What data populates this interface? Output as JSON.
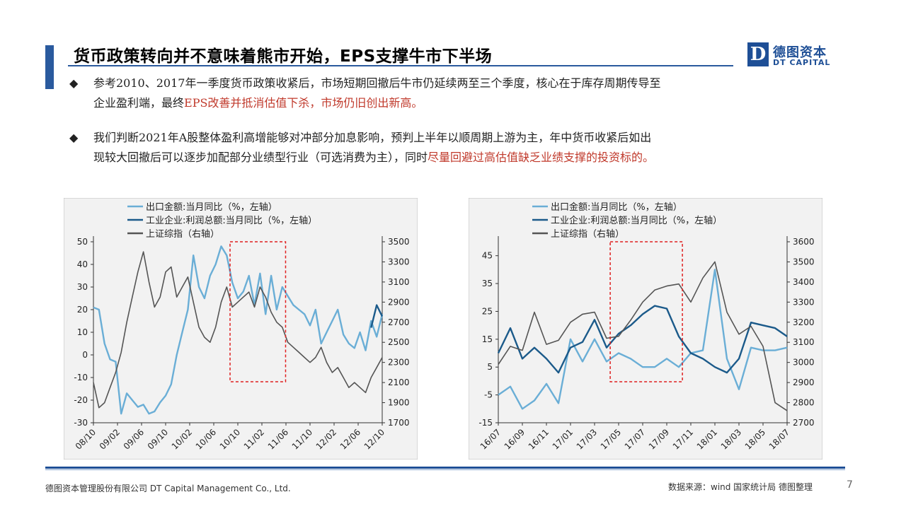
{
  "title": "货币政策转向并不意味着熊市开始，EPS支撑牛市下半场",
  "logo": {
    "mark": "D",
    "cn": "德图资本",
    "en": "DT CAPITAL"
  },
  "bullets": [
    {
      "line1": "参考2010、2017年一季度货币政策收紧后，市场短期回撤后牛市仍延续两至三个季度，核心在于库存周期传导至",
      "line2_normal": "企业盈利端，最终",
      "line2_red": "EPS改善并抵消估值下杀，市场仍旧创出新高。"
    },
    {
      "line1": "我们判断2021年A股整体盈利高增能够对冲部分加息影响，预判上半年以顺周期上游为主，年中货币收紧后如出",
      "line2_normal": "现较大回撤后可以逐步加配部分业绩型行业（可选消费为主），同时",
      "line2_red": "尽量回避过高估值缺乏业绩支撑的投资标的。"
    }
  ],
  "colors": {
    "light": "#6aaed6",
    "dark": "#1b5a8a",
    "gray": "#555555",
    "accent": "#1e4f96",
    "red": "#e02020"
  },
  "chart_data": [
    {
      "type": "line",
      "legend": [
        "出口金额:当月同比（%，左轴）",
        "工业企业:利润总额:当月同比（%，左轴）",
        "上证综指（右轴）"
      ],
      "x_ticks": [
        "08/10",
        "09/02",
        "09/06",
        "09/10",
        "10/02",
        "10/06",
        "10/10",
        "11/02",
        "11/06",
        "11/10",
        "12/02",
        "12/06",
        "12/10"
      ],
      "x_range": [
        0,
        26
      ],
      "y_left": {
        "ticks": [
          50,
          40,
          30,
          20,
          10,
          0,
          -10,
          -20,
          -30
        ],
        "range": [
          -30,
          50
        ]
      },
      "y_right": {
        "ticks": [
          3500,
          3300,
          3100,
          2900,
          2700,
          2500,
          2300,
          2100,
          1900,
          1700
        ],
        "range": [
          1700,
          3500
        ]
      },
      "highlight_box": {
        "x_from": 12.3,
        "x_to": 17.3
      },
      "series": [
        {
          "name": "出口金额:当月同比（%，左轴）",
          "axis": "left",
          "x": [
            0,
            0.5,
            1,
            1.5,
            2,
            2.5,
            3,
            3.5,
            4,
            4.5,
            5,
            5.5,
            6,
            6.5,
            7,
            7.5,
            8,
            8.5,
            9,
            9.5,
            10,
            10.5,
            11,
            11.5,
            12,
            12.5,
            13,
            13.5,
            14,
            14.5,
            15,
            15.5,
            16,
            16.5,
            17,
            17.5,
            18,
            18.5,
            19,
            19.5,
            20,
            20.5,
            21,
            21.5,
            22,
            22.5,
            23,
            23.5,
            24,
            24.5,
            25,
            25.5,
            26
          ],
          "values": [
            21,
            20,
            5,
            -2,
            -3,
            -26,
            -17,
            -20,
            -23,
            -22,
            -26,
            -25,
            -21,
            -18,
            -13,
            0,
            10,
            20,
            44,
            30,
            25,
            35,
            40,
            48,
            44,
            32,
            25,
            28,
            35,
            22,
            36,
            18,
            35,
            20,
            30,
            26,
            22,
            20,
            18,
            13,
            20,
            5,
            10,
            15,
            20,
            9,
            5,
            3,
            10,
            2,
            15,
            8,
            18
          ],
          "color": "light"
        },
        {
          "name": "工业企业:利润总额:当月同比（%，左轴）",
          "axis": "left",
          "x": [
            25,
            25.5,
            26
          ],
          "values": [
            12,
            22,
            17
          ],
          "color": "dark"
        },
        {
          "name": "上证综指（右轴）",
          "axis": "right",
          "x": [
            0,
            0.5,
            1,
            1.5,
            2,
            2.5,
            3,
            3.5,
            4,
            4.5,
            5,
            5.5,
            6,
            6.5,
            7,
            7.5,
            8,
            8.5,
            9,
            9.5,
            10,
            10.5,
            11,
            11.5,
            12,
            12.5,
            13,
            13.5,
            14,
            14.5,
            15,
            15.5,
            16,
            16.5,
            17,
            17.5,
            18,
            18.5,
            19,
            19.5,
            20,
            20.5,
            21,
            21.5,
            22,
            22.5,
            23,
            23.5,
            24,
            24.5,
            25,
            25.5,
            26
          ],
          "values": [
            2100,
            1850,
            1900,
            2050,
            2200,
            2400,
            2700,
            2950,
            3200,
            3400,
            3100,
            2850,
            2950,
            3200,
            3250,
            2950,
            3050,
            3150,
            2900,
            2650,
            2550,
            2500,
            2650,
            2900,
            3050,
            2850,
            2900,
            2950,
            3000,
            2850,
            3050,
            2950,
            2800,
            2700,
            2650,
            2500,
            2450,
            2400,
            2350,
            2300,
            2350,
            2450,
            2300,
            2200,
            2250,
            2150,
            2050,
            2100,
            2050,
            2000,
            2150,
            2250,
            2350
          ],
          "color": "gray"
        }
      ]
    },
    {
      "type": "line",
      "legend": [
        "出口金额:当月同比（%，左轴）",
        "工业企业:利润总额:当月同比（%，左轴）",
        "上证综指（右轴）"
      ],
      "x_ticks": [
        "16/07",
        "16/09",
        "16/11",
        "17/01",
        "17/03",
        "17/05",
        "17/07",
        "17/09",
        "17/11",
        "18/01",
        "18/03",
        "18/05",
        "18/07"
      ],
      "x_range": [
        0,
        24
      ],
      "y_left": {
        "ticks": [
          45,
          35,
          25,
          15,
          5,
          -5,
          -15
        ],
        "range": [
          -15,
          50
        ]
      },
      "y_right": {
        "ticks": [
          3600,
          3500,
          3400,
          3300,
          3200,
          3100,
          3000,
          2900,
          2800,
          2700
        ],
        "range": [
          2700,
          3600
        ]
      },
      "highlight_box": {
        "x_from": 9.3,
        "x_to": 15.3
      },
      "series": [
        {
          "name": "出口金额:当月同比（%，左轴）",
          "axis": "left",
          "x": [
            0,
            1,
            2,
            3,
            4,
            5,
            6,
            7,
            8,
            9,
            10,
            11,
            12,
            13,
            14,
            15,
            16,
            17,
            18,
            19,
            20,
            21,
            22,
            23,
            24
          ],
          "values": [
            -5,
            -2,
            -10,
            -7,
            -1,
            -8,
            15,
            7,
            15,
            7,
            10,
            8,
            5,
            5,
            8,
            5,
            10,
            11,
            40,
            8,
            -3,
            12,
            11,
            11,
            12
          ],
          "color": "light"
        },
        {
          "name": "工业企业:利润总额:当月同比（%，左轴）",
          "axis": "left",
          "x": [
            0,
            1,
            2,
            3,
            4,
            5,
            6,
            7,
            8,
            9,
            10,
            11,
            12,
            13,
            14,
            15,
            16,
            17,
            18,
            19,
            20,
            21,
            22,
            23,
            24
          ],
          "values": [
            10,
            19,
            8,
            12,
            8,
            3,
            12,
            14,
            22,
            12,
            17,
            20,
            24,
            27,
            26,
            16,
            10,
            8,
            5,
            3,
            8,
            21,
            20,
            19,
            16
          ],
          "color": "dark"
        },
        {
          "name": "上证综指（右轴）",
          "axis": "right",
          "x": [
            0,
            1,
            2,
            3,
            4,
            5,
            6,
            7,
            8,
            9,
            10,
            11,
            12,
            13,
            14,
            15,
            16,
            17,
            18,
            19,
            20,
            21,
            22,
            23,
            24
          ],
          "values": [
            2990,
            3080,
            3060,
            3250,
            3090,
            3110,
            3200,
            3240,
            3250,
            3120,
            3130,
            3210,
            3300,
            3360,
            3380,
            3390,
            3300,
            3420,
            3500,
            3250,
            3140,
            3180,
            3080,
            2800,
            2760
          ],
          "color": "gray"
        }
      ]
    }
  ],
  "footer": {
    "company": "德图资本管理股份有限公司  DT Capital Management  Co., Ltd.",
    "source": "数据来源：wind  国家统计局 德图整理",
    "page": "7"
  }
}
